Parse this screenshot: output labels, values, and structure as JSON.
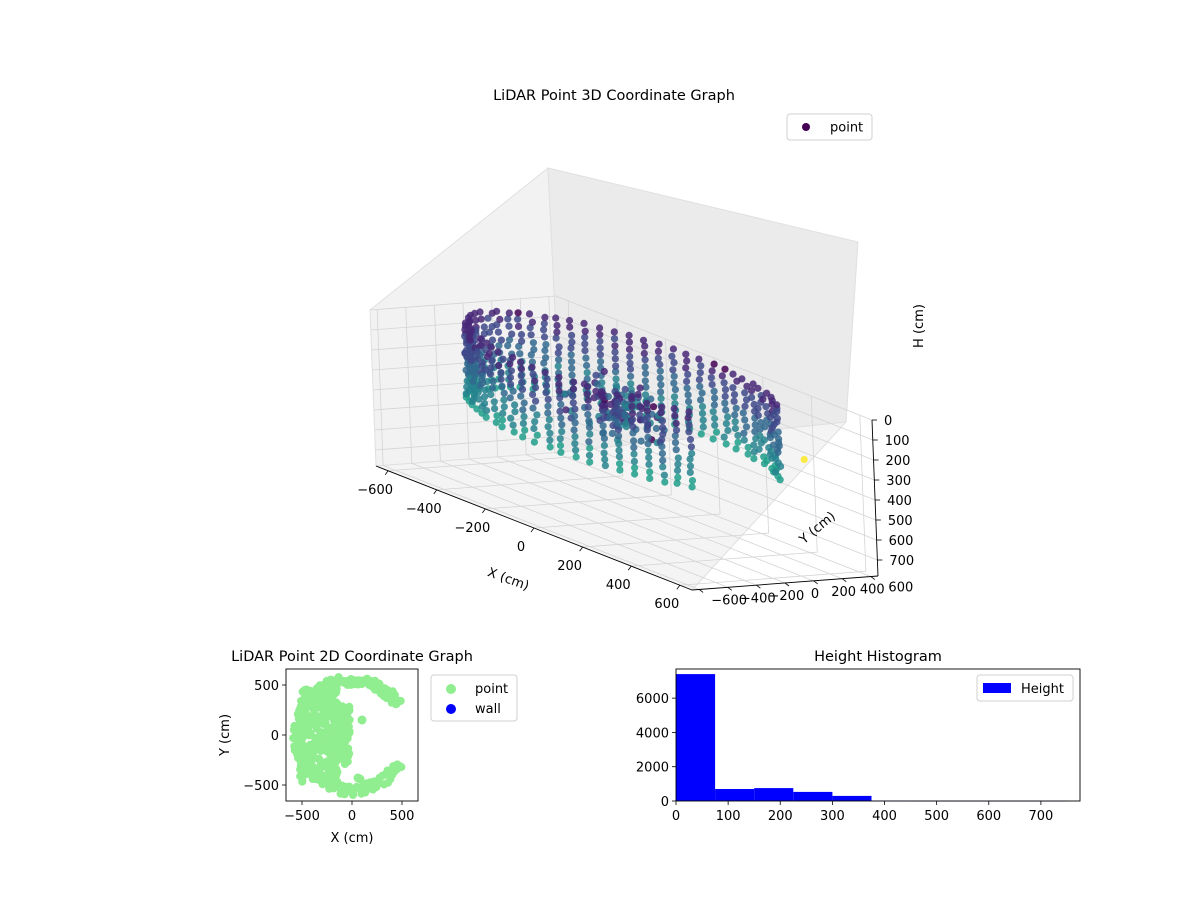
{
  "figure": {
    "background": "#ffffff"
  },
  "chart_data": [
    {
      "type": "scatter",
      "kind": "3d",
      "title": "LiDAR Point 3D Coordinate Graph",
      "xlabel": "X (cm)",
      "ylabel": "Y (cm)",
      "zlabel": "H (cm)",
      "xlim": [
        -650,
        650
      ],
      "ylim": [
        -650,
        650
      ],
      "zlim": [
        0,
        780
      ],
      "z_inverted": true,
      "xticks": [
        "−600",
        "−400",
        "−200",
        "0",
        "200",
        "400",
        "600"
      ],
      "yticks": [
        "−600",
        "−400",
        "−200",
        "0",
        "200",
        "400",
        "600"
      ],
      "zticks": [
        "0",
        "100",
        "200",
        "300",
        "400",
        "500",
        "600",
        "700"
      ],
      "grid": true,
      "colormap": "viridis",
      "legend": {
        "position": "top-right",
        "entries": [
          {
            "label": "point",
            "color": "#440154"
          }
        ]
      },
      "series": [
        {
          "name": "point",
          "structure": "C-shaped cylindrical wall of points (radius about 550 cm, heights 0 to about 380 cm, opening toward +X) plus an inner cluster near the origin",
          "wall_radius": 550,
          "wall_angle_range_deg": [
            35,
            330
          ],
          "wall_height_range": [
            0,
            380
          ],
          "inner_cluster": [
            [
              -60,
              80,
              200
            ],
            [
              -20,
              40,
              240
            ],
            [
              40,
              20,
              220
            ],
            [
              -100,
              120,
              260
            ],
            [
              -150,
              60,
              300
            ]
          ],
          "outlier": [
            600,
            250,
            200
          ]
        }
      ]
    },
    {
      "type": "scatter",
      "title": "LiDAR Point 2D Coordinate Graph",
      "xlabel": "X (cm)",
      "ylabel": "Y (cm)",
      "xlim": [
        -660,
        660
      ],
      "ylim": [
        -660,
        660
      ],
      "xticks": [
        "−500",
        "0",
        "500"
      ],
      "yticks": [
        "−500",
        "0",
        "500"
      ],
      "legend": {
        "position": "outside-right",
        "entries": [
          {
            "label": "point",
            "color": "#90ee90"
          },
          {
            "label": "wall",
            "color": "#0000ff"
          }
        ]
      },
      "series": [
        {
          "name": "point",
          "color": "#90ee90",
          "structure": "C-shaped ring (radius about 550 cm) with a dense filled region around x = -250 and inner blobs near x = -100"
        },
        {
          "name": "wall",
          "color": "#0000ff",
          "values": []
        }
      ]
    },
    {
      "type": "bar",
      "kind": "histogram",
      "title": "Height Histogram",
      "xlabel": "",
      "ylabel": "",
      "xlim": [
        0,
        775
      ],
      "ylim": [
        0,
        7700
      ],
      "xticks": [
        "0",
        "100",
        "200",
        "300",
        "400",
        "500",
        "600",
        "700"
      ],
      "yticks": [
        "0",
        "2000",
        "4000",
        "6000"
      ],
      "color": "#0000ff",
      "legend": {
        "position": "top-right",
        "entries": [
          {
            "label": "Height",
            "color": "#0000ff"
          }
        ]
      },
      "bins": [
        [
          0,
          75
        ],
        [
          75,
          150
        ],
        [
          150,
          225
        ],
        [
          225,
          300
        ],
        [
          300,
          375
        ],
        [
          375,
          450
        ],
        [
          450,
          525
        ],
        [
          525,
          600
        ],
        [
          600,
          675
        ],
        [
          675,
          750
        ]
      ],
      "values": [
        7400,
        700,
        750,
        530,
        300,
        20,
        10,
        8,
        6,
        5
      ]
    }
  ]
}
